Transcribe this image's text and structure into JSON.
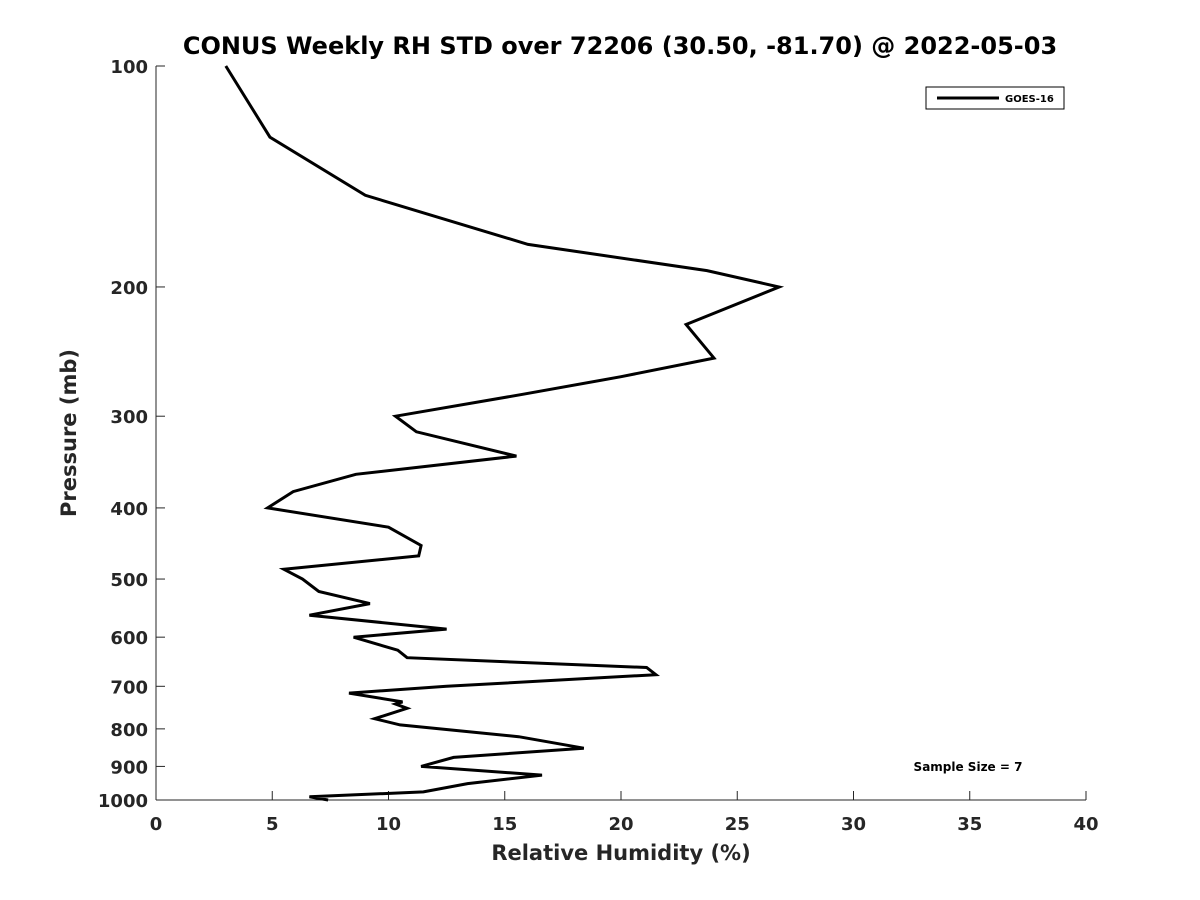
{
  "chart_data": {
    "type": "line",
    "title": "CONUS Weekly RH STD over 72206 (30.50, -81.70) @ 2022-05-03",
    "xlabel": "Relative Humidity (%)",
    "ylabel": "Pressure (mb)",
    "xlim": [
      0,
      40
    ],
    "ylim": [
      100,
      1000
    ],
    "y_scale": "log",
    "y_reversed": true,
    "x_ticks": [
      "0",
      "5",
      "10",
      "15",
      "20",
      "25",
      "30",
      "35",
      "40"
    ],
    "y_ticks": [
      "100",
      "200",
      "300",
      "400",
      "500",
      "600",
      "700",
      "800",
      "900",
      "1000"
    ],
    "grid": false,
    "legend_position": "top-right",
    "annotation": "Sample Size = 7",
    "series": [
      {
        "name": "GOES-16",
        "color": "#000000",
        "points": [
          [
            3.0,
            100
          ],
          [
            4.9,
            125
          ],
          [
            9.0,
            150
          ],
          [
            16.0,
            175
          ],
          [
            23.7,
            190
          ],
          [
            26.8,
            200
          ],
          [
            22.8,
            225
          ],
          [
            24.0,
            250
          ],
          [
            20.0,
            265
          ],
          [
            15.8,
            280
          ],
          [
            10.3,
            300
          ],
          [
            11.2,
            315
          ],
          [
            15.5,
            340
          ],
          [
            8.6,
            360
          ],
          [
            5.9,
            380
          ],
          [
            4.8,
            400
          ],
          [
            10.0,
            425
          ],
          [
            11.4,
            450
          ],
          [
            11.3,
            465
          ],
          [
            5.5,
            485
          ],
          [
            6.3,
            500
          ],
          [
            7.0,
            520
          ],
          [
            9.2,
            540
          ],
          [
            6.6,
            560
          ],
          [
            12.5,
            585
          ],
          [
            8.5,
            600
          ],
          [
            10.4,
            625
          ],
          [
            10.8,
            640
          ],
          [
            21.1,
            660
          ],
          [
            21.5,
            675
          ],
          [
            12.5,
            700
          ],
          [
            8.3,
            715
          ],
          [
            10.6,
            735
          ],
          [
            10.3,
            740
          ],
          [
            10.8,
            750
          ],
          [
            9.4,
            775
          ],
          [
            10.5,
            790
          ],
          [
            15.6,
            820
          ],
          [
            18.4,
            850
          ],
          [
            12.8,
            875
          ],
          [
            11.4,
            900
          ],
          [
            16.6,
            925
          ],
          [
            13.4,
            950
          ],
          [
            11.5,
            975
          ],
          [
            6.6,
            990
          ],
          [
            7.4,
            1000
          ]
        ]
      }
    ]
  }
}
